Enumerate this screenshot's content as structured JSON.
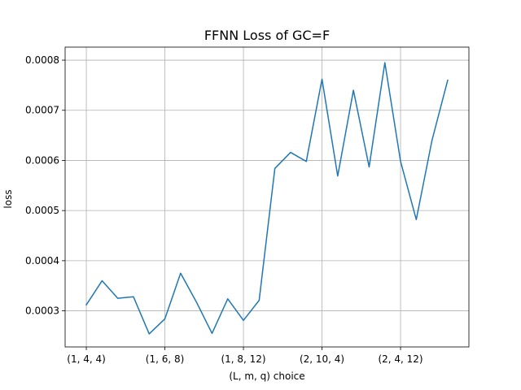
{
  "chart_data": {
    "type": "line",
    "title": "FFNN Loss of GC=F",
    "xlabel": "(L, m, q) choice",
    "ylabel": "loss",
    "x_tick_labels": [
      "(1, 4, 4)",
      "(1, 6, 8)",
      "(1, 8, 12)",
      "(2, 10, 4)",
      "(2, 4, 12)"
    ],
    "x_tick_positions": [
      0,
      5,
      10,
      15,
      20
    ],
    "xlim": [
      -1.35,
      24.35
    ],
    "ylim": [
      0.000228,
      0.000826
    ],
    "y_ticks": [
      0.0003,
      0.0004,
      0.0005,
      0.0006,
      0.0007,
      0.0008
    ],
    "y_tick_labels": [
      "0.0003",
      "0.0004",
      "0.0005",
      "0.0006",
      "0.0007",
      "0.0008"
    ],
    "grid": true,
    "series": [
      {
        "color": "#1f77b4",
        "x": [
          0,
          1,
          2,
          3,
          4,
          5,
          6,
          7,
          8,
          9,
          10,
          11,
          12,
          13,
          14,
          15,
          16,
          17,
          18,
          19,
          20,
          21,
          22,
          23
        ],
        "values": [
          0.000312,
          0.00036,
          0.000325,
          0.000328,
          0.000254,
          0.000284,
          0.000375,
          0.000318,
          0.000255,
          0.000324,
          0.000281,
          0.000321,
          0.000584,
          0.000616,
          0.000598,
          0.000762,
          0.000569,
          0.00074,
          0.000587,
          0.000795,
          0.000598,
          0.000482,
          0.00064,
          0.00076
        ]
      }
    ]
  }
}
